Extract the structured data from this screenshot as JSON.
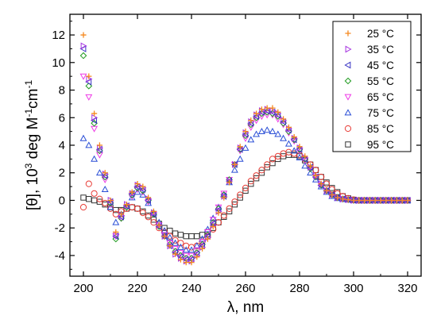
{
  "chart_data": {
    "type": "scatter",
    "title": "",
    "xlabel": "λ, nm",
    "ylabel": {
      "main": "[θ], 10",
      "sup1": "3",
      "mid": " deg M",
      "sup2": "-1",
      "mid2": "cm",
      "sup3": "-1"
    },
    "xlim": [
      195,
      325
    ],
    "ylim": [
      -5.5,
      13.5
    ],
    "xticks": [
      200,
      220,
      240,
      260,
      280,
      300,
      320
    ],
    "yticks": [
      -4,
      -2,
      0,
      2,
      4,
      6,
      8,
      10,
      12
    ],
    "grid": false,
    "legend_position": "top-right",
    "x": [
      200,
      202,
      204,
      206,
      208,
      210,
      212,
      214,
      216,
      218,
      220,
      222,
      224,
      226,
      228,
      230,
      232,
      234,
      236,
      238,
      240,
      242,
      244,
      246,
      248,
      250,
      252,
      254,
      256,
      258,
      260,
      262,
      264,
      266,
      268,
      270,
      272,
      274,
      276,
      278,
      280,
      282,
      284,
      286,
      288,
      290,
      292,
      294,
      296,
      298,
      300,
      302,
      304,
      306,
      308,
      310,
      312,
      314,
      316,
      318,
      320
    ],
    "series": [
      {
        "name": "25 °C",
        "marker": "plus",
        "color": "#f5891f",
        "values": [
          12.0,
          9.0,
          6.3,
          4.0,
          2.0,
          0.0,
          -2.3,
          -1.0,
          -0.3,
          0.6,
          1.2,
          1.0,
          0.2,
          -0.8,
          -1.8,
          -2.6,
          -3.3,
          -3.9,
          -4.3,
          -4.5,
          -4.5,
          -4.1,
          -3.5,
          -2.8,
          -1.9,
          -0.9,
          0.2,
          1.3,
          2.6,
          3.9,
          5.0,
          5.8,
          6.3,
          6.6,
          6.7,
          6.7,
          6.4,
          5.9,
          5.3,
          4.6,
          3.9,
          3.2,
          2.5,
          1.8,
          1.2,
          0.7,
          0.4,
          0.2,
          0.1,
          0.05,
          0.0,
          0.0,
          0.0,
          0.0,
          0.0,
          0.0,
          0.0,
          0.0,
          0.0,
          0.0,
          0.0
        ]
      },
      {
        "name": "35 °C",
        "marker": "triangle-right",
        "color": "#a634e0",
        "values": [
          11.2,
          8.8,
          6.0,
          3.8,
          1.9,
          0.0,
          -2.5,
          -1.1,
          -0.3,
          0.5,
          1.1,
          0.9,
          0.1,
          -0.9,
          -1.8,
          -2.6,
          -3.3,
          -3.9,
          -4.2,
          -4.4,
          -4.4,
          -4.0,
          -3.4,
          -2.7,
          -1.8,
          -0.8,
          0.3,
          1.4,
          2.6,
          3.8,
          4.9,
          5.7,
          6.2,
          6.5,
          6.6,
          6.5,
          6.3,
          5.8,
          5.2,
          4.5,
          3.8,
          3.1,
          2.4,
          1.8,
          1.2,
          0.7,
          0.4,
          0.2,
          0.1,
          0.05,
          0.0,
          0.0,
          0.0,
          0.0,
          0.0,
          0.0,
          0.0,
          0.0,
          0.0,
          0.0,
          0.0
        ]
      },
      {
        "name": "45 °C",
        "marker": "triangle-left",
        "color": "#3a35c4",
        "values": [
          11.0,
          8.6,
          5.8,
          3.7,
          1.8,
          -0.1,
          -2.6,
          -1.2,
          -0.4,
          0.5,
          1.0,
          0.8,
          0.0,
          -1.0,
          -1.9,
          -2.6,
          -3.3,
          -3.8,
          -4.1,
          -4.3,
          -4.3,
          -3.9,
          -3.3,
          -2.6,
          -1.7,
          -0.7,
          0.3,
          1.4,
          2.6,
          3.7,
          4.8,
          5.6,
          6.1,
          6.4,
          6.5,
          6.4,
          6.2,
          5.7,
          5.1,
          4.4,
          3.7,
          3.0,
          2.4,
          1.7,
          1.1,
          0.7,
          0.4,
          0.2,
          0.1,
          0.05,
          0.0,
          0.0,
          0.0,
          0.0,
          0.0,
          0.0,
          0.0,
          0.0,
          0.0,
          0.0,
          0.0
        ]
      },
      {
        "name": "55 °C",
        "marker": "diamond",
        "color": "#1e9a1e",
        "values": [
          10.5,
          8.3,
          5.6,
          3.6,
          1.7,
          -0.2,
          -2.8,
          -1.3,
          -0.5,
          0.4,
          0.9,
          0.7,
          0.0,
          -1.0,
          -1.9,
          -2.6,
          -3.2,
          -3.7,
          -4.0,
          -4.2,
          -4.2,
          -3.8,
          -3.2,
          -2.5,
          -1.6,
          -0.6,
          0.4,
          1.5,
          2.6,
          3.7,
          4.7,
          5.5,
          6.0,
          6.3,
          6.4,
          6.3,
          6.1,
          5.6,
          5.0,
          4.4,
          3.7,
          3.0,
          2.3,
          1.7,
          1.1,
          0.7,
          0.4,
          0.2,
          0.1,
          0.05,
          0.0,
          0.0,
          0.0,
          0.0,
          0.0,
          0.0,
          0.0,
          0.0,
          0.0,
          0.0,
          0.0
        ]
      },
      {
        "name": "65 °C",
        "marker": "triangle-down",
        "color": "#ee3ae6",
        "values": [
          9.0,
          7.5,
          5.2,
          3.3,
          1.5,
          -0.3,
          -2.6,
          -1.3,
          -0.5,
          0.3,
          0.8,
          0.6,
          -0.1,
          -1.0,
          -1.8,
          -2.5,
          -3.1,
          -3.5,
          -3.8,
          -4.0,
          -4.0,
          -3.6,
          -3.0,
          -2.3,
          -1.4,
          -0.5,
          0.5,
          1.5,
          2.6,
          3.6,
          4.5,
          5.3,
          5.8,
          6.1,
          6.2,
          6.2,
          5.9,
          5.5,
          4.9,
          4.3,
          3.6,
          2.9,
          2.3,
          1.7,
          1.1,
          0.7,
          0.4,
          0.2,
          0.1,
          0.05,
          0.0,
          0.0,
          0.0,
          0.0,
          0.0,
          0.0,
          0.0,
          0.0,
          0.0,
          0.0,
          0.0
        ]
      },
      {
        "name": "75 °C",
        "marker": "triangle-up",
        "color": "#2b4fd6",
        "values": [
          4.5,
          4.0,
          3.0,
          2.0,
          0.8,
          -0.5,
          -1.6,
          -1.0,
          -0.4,
          0.2,
          0.6,
          0.4,
          -0.2,
          -0.9,
          -1.6,
          -2.2,
          -2.7,
          -3.1,
          -3.4,
          -3.6,
          -3.6,
          -3.3,
          -2.8,
          -2.1,
          -1.3,
          -0.5,
          0.4,
          1.3,
          2.2,
          3.0,
          3.8,
          4.4,
          4.8,
          5.0,
          5.1,
          5.0,
          4.8,
          4.5,
          4.1,
          3.6,
          3.1,
          2.5,
          2.0,
          1.5,
          1.0,
          0.6,
          0.3,
          0.15,
          0.08,
          0.04,
          0.0,
          0.0,
          0.0,
          0.0,
          0.0,
          0.0,
          0.0,
          0.0,
          0.0,
          0.0,
          0.0
        ]
      },
      {
        "name": "85 °C",
        "marker": "circle",
        "color": "#e83c36",
        "values": [
          -0.5,
          1.2,
          0.5,
          0.1,
          -0.2,
          -0.6,
          -1.0,
          -0.8,
          -0.6,
          -0.5,
          -0.6,
          -0.9,
          -1.2,
          -1.6,
          -2.0,
          -2.3,
          -2.6,
          -2.9,
          -3.1,
          -3.3,
          -3.4,
          -3.3,
          -3.0,
          -2.6,
          -2.1,
          -1.6,
          -1.1,
          -0.6,
          -0.1,
          0.4,
          0.9,
          1.4,
          1.8,
          2.2,
          2.6,
          3.0,
          3.2,
          3.4,
          3.5,
          3.4,
          3.3,
          3.0,
          2.6,
          2.2,
          1.7,
          1.2,
          0.8,
          0.5,
          0.3,
          0.15,
          0.05,
          0.0,
          0.0,
          0.0,
          0.0,
          0.0,
          0.0,
          0.0,
          0.0,
          0.0,
          0.0
        ]
      },
      {
        "name": "95 °C",
        "marker": "square",
        "color": "#333333",
        "values": [
          0.2,
          0.1,
          0.0,
          -0.1,
          -0.3,
          -0.5,
          -0.7,
          -0.7,
          -0.6,
          -0.5,
          -0.6,
          -0.8,
          -1.1,
          -1.4,
          -1.7,
          -2.0,
          -2.2,
          -2.4,
          -2.5,
          -2.6,
          -2.6,
          -2.6,
          -2.5,
          -2.3,
          -2.0,
          -1.6,
          -1.2,
          -0.8,
          -0.3,
          0.2,
          0.7,
          1.2,
          1.6,
          2.0,
          2.4,
          2.7,
          3.0,
          3.2,
          3.3,
          3.3,
          3.2,
          2.9,
          2.6,
          2.2,
          1.7,
          1.3,
          0.9,
          0.6,
          0.3,
          0.15,
          0.05,
          0.0,
          0.0,
          0.0,
          0.0,
          0.0,
          0.0,
          0.0,
          0.0,
          0.0,
          0.0
        ]
      }
    ]
  }
}
